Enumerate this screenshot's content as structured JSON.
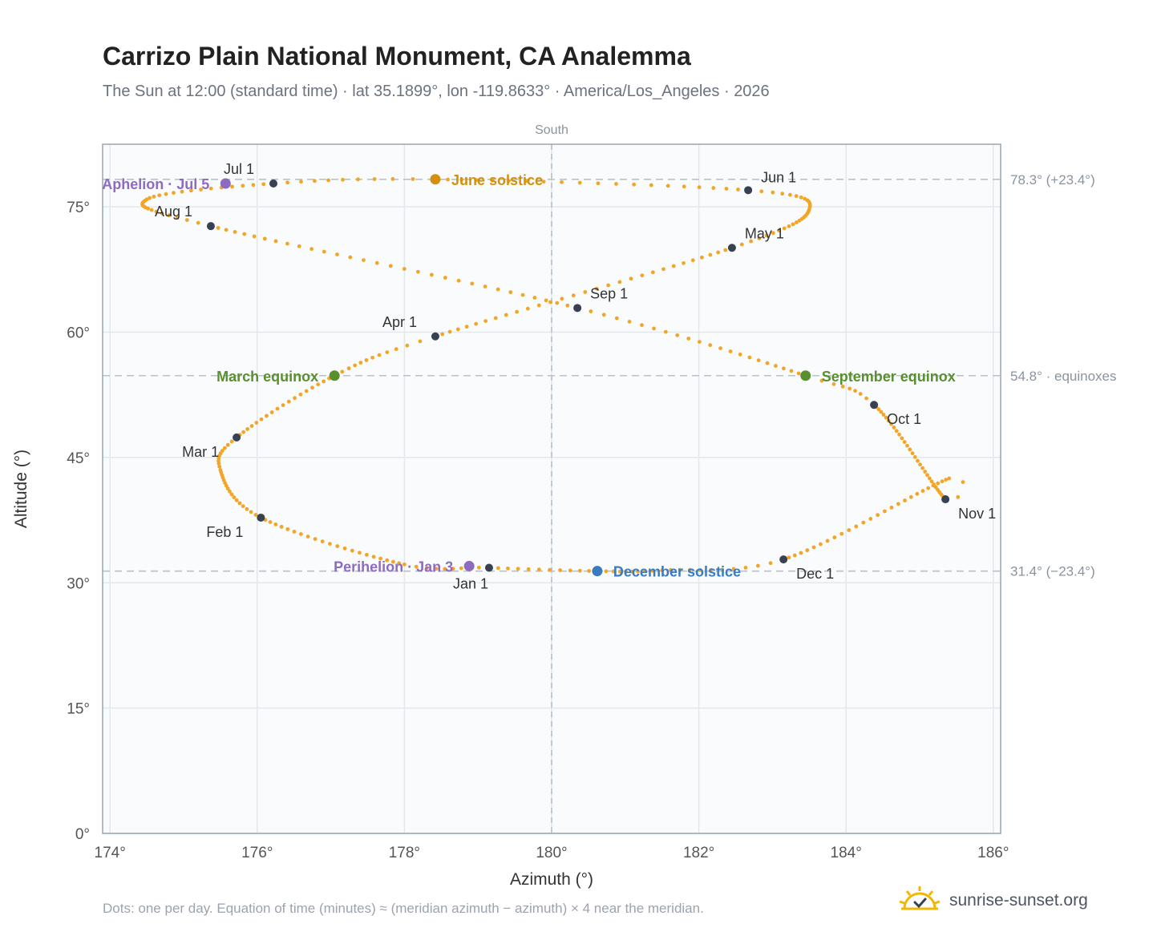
{
  "title": "Carrizo Plain National Monument, CA Analemma",
  "subtitle": "The Sun at 12:00 (standard time) · lat 35.1899°, lon -119.8633° · America/Los_Angeles · 2026",
  "footnote": "Dots: one per day. Equation of time (minutes) ≈ (meridian azimuth − azimuth) × 4 near the meridian.",
  "brand": {
    "name": "sunrise-sunset.org",
    "icon": "sun-check-icon"
  },
  "colors": {
    "path": "#f2a526",
    "month_marker": "#374151",
    "solstice_june": "#d4900a",
    "solstice_december": "#3a7abf",
    "equinox": "#5a8f2f",
    "apsis": "#8e6bbf",
    "plot_bg": "#f9fbfd",
    "grid": "#e3e8ee",
    "frame": "#9aa5b1"
  },
  "chart_data": {
    "type": "scatter",
    "title": "Carrizo Plain National Monument, CA Analemma",
    "xlabel": "Azimuth (°)",
    "ylabel": "Altitude (°)",
    "xlim": [
      173.9,
      186.1
    ],
    "ylim": [
      0,
      82.5
    ],
    "xticks": [
      174,
      176,
      178,
      180,
      182,
      184,
      186
    ],
    "yticks": [
      0,
      15,
      30,
      45,
      60,
      75
    ],
    "grid": true,
    "meridian": {
      "azimuth": 180,
      "label": "South"
    },
    "reference_lines": [
      {
        "altitude": 78.3,
        "label": "78.3° (+23.4°)"
      },
      {
        "altitude": 54.8,
        "label": "54.8° · equinoxes"
      },
      {
        "altitude": 31.4,
        "label": "31.4° (−23.4°)"
      }
    ],
    "path_keypoints": [
      {
        "day": 0,
        "az": 179.15,
        "alt": 31.8
      },
      {
        "day": 31,
        "az": 176.05,
        "alt": 37.8
      },
      {
        "day": 59,
        "az": 175.72,
        "alt": 47.4
      },
      {
        "day": 78,
        "az": 177.05,
        "alt": 54.8
      },
      {
        "day": 90,
        "az": 178.42,
        "alt": 59.5
      },
      {
        "day": 120,
        "az": 182.45,
        "alt": 70.1
      },
      {
        "day": 151,
        "az": 182.67,
        "alt": 77.0
      },
      {
        "day": 171,
        "az": 178.42,
        "alt": 78.3
      },
      {
        "day": 181,
        "az": 176.22,
        "alt": 77.8
      },
      {
        "day": 212,
        "az": 175.37,
        "alt": 72.7
      },
      {
        "day": 243,
        "az": 180.35,
        "alt": 62.9
      },
      {
        "day": 265,
        "az": 183.45,
        "alt": 54.8
      },
      {
        "day": 273,
        "az": 184.38,
        "alt": 51.3
      },
      {
        "day": 304,
        "az": 185.35,
        "alt": 40.0
      },
      {
        "day": 334,
        "az": 183.15,
        "alt": 32.8
      },
      {
        "day": 354,
        "az": 180.62,
        "alt": 31.4
      },
      {
        "day": 365,
        "az": 179.15,
        "alt": 31.8
      }
    ],
    "path_extremes": [
      {
        "day": 9,
        "az": 178.0,
        "alt": 32.2
      },
      {
        "day": 48,
        "az": 175.5,
        "alt": 43.5
      },
      {
        "day": 138,
        "az": 183.5,
        "alt": 74.7
      },
      {
        "day": 196,
        "az": 174.5,
        "alt": 75.9
      },
      {
        "day": 307,
        "az": 185.4,
        "alt": 42.5
      },
      {
        "day": 345,
        "az": 181.5,
        "alt": 31.5
      }
    ],
    "month_markers": [
      {
        "label": "Jan 1",
        "az": 179.15,
        "alt": 31.8
      },
      {
        "label": "Feb 1",
        "az": 176.05,
        "alt": 37.8
      },
      {
        "label": "Mar 1",
        "az": 175.72,
        "alt": 47.4
      },
      {
        "label": "Apr 1",
        "az": 178.42,
        "alt": 59.5
      },
      {
        "label": "May 1",
        "az": 182.45,
        "alt": 70.1
      },
      {
        "label": "Jun 1",
        "az": 182.67,
        "alt": 77.0
      },
      {
        "label": "Jul 1",
        "az": 176.22,
        "alt": 77.8
      },
      {
        "label": "Aug 1",
        "az": 175.37,
        "alt": 72.7
      },
      {
        "label": "Sep 1",
        "az": 180.35,
        "alt": 62.9
      },
      {
        "label": "Oct 1",
        "az": 184.38,
        "alt": 51.3
      },
      {
        "label": "Nov 1",
        "az": 185.35,
        "alt": 40.0
      },
      {
        "label": "Dec 1",
        "az": 183.15,
        "alt": 32.8
      }
    ],
    "events": [
      {
        "label": "June solstice",
        "az": 178.42,
        "alt": 78.3,
        "kind": "solstice_june"
      },
      {
        "label": "December solstice",
        "az": 180.62,
        "alt": 31.4,
        "kind": "solstice_december"
      },
      {
        "label": "March equinox",
        "az": 177.05,
        "alt": 54.8,
        "kind": "equinox"
      },
      {
        "label": "September equinox",
        "az": 183.45,
        "alt": 54.8,
        "kind": "equinox"
      },
      {
        "label": "Aphelion · Jul 5",
        "az": 175.57,
        "alt": 77.8,
        "kind": "apsis"
      },
      {
        "label": "Perihelion · Jan 3",
        "az": 178.88,
        "alt": 32.0,
        "kind": "apsis"
      }
    ]
  }
}
